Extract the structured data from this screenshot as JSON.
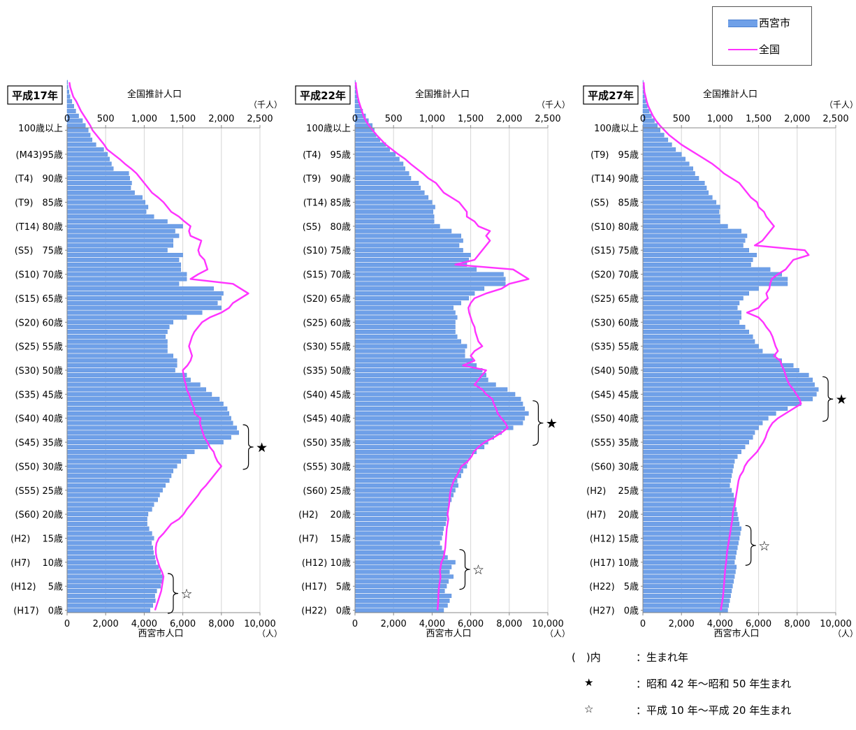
{
  "legend": {
    "items": [
      {
        "label": "西宮市",
        "color": "#6fa0e8",
        "kind": "bar"
      },
      {
        "label": "全国",
        "color": "#ff33ff",
        "kind": "line"
      }
    ]
  },
  "notes": [
    {
      "symbol": "(　)内",
      "text": "：生まれ年"
    },
    {
      "symbol": "★",
      "text": "：昭和 42 年～昭和 50 年生まれ"
    },
    {
      "symbol": "☆",
      "text": "：平成 10 年～平成 20 年生まれ"
    }
  ],
  "chart_data": [
    {
      "type": "bar",
      "title": "平成17年",
      "top_axis_label": "全国推計人口",
      "top_axis_unit": "（千人）",
      "xlabel": "西宮市人口",
      "x_unit": "（人）",
      "xlim": [
        0,
        10000
      ],
      "x_ticks": [
        "0",
        "2,000",
        "4,000",
        "6,000",
        "8,000",
        "10,000"
      ],
      "top_lim": [
        0,
        2500
      ],
      "top_ticks": [
        "0",
        "500",
        "1,000",
        "1,500",
        "2,000",
        "2,500"
      ],
      "age_labels": [
        "100歳以上",
        "(M43)95歳",
        "(T4)　90歳",
        "(T9)　85歳",
        "(T14) 80歳",
        "(S5)　75歳",
        "(S10)  70歳",
        "(S15)  65歳",
        "(S20)  60歳",
        "(S25)  55歳",
        "(S30)  50歳",
        "(S35)  45歳",
        "(S40)  40歳",
        "(S45)  35歳",
        "(S50)  30歳",
        "(S55)  25歳",
        "(S60)  20歳",
        "(H2)　 15歳",
        "(H7)　 10歳",
        "(H12)　 5歳",
        "(H17)　0歳"
      ],
      "star_range": [
        30,
        38
      ],
      "wstar_range": [
        0,
        7
      ],
      "series": [
        {
          "name": "西宮市",
          "values": [
            4300,
            4450,
            4580,
            4550,
            4650,
            4850,
            4950,
            5000,
            4850,
            4750,
            4600,
            4550,
            4480,
            4450,
            4380,
            4500,
            4400,
            4250,
            4150,
            4150,
            4200,
            4400,
            4500,
            4700,
            4800,
            4950,
            5100,
            5300,
            5400,
            5500,
            5700,
            5900,
            6200,
            6600,
            7300,
            8100,
            8500,
            8900,
            8800,
            8600,
            8500,
            8400,
            8300,
            8100,
            7900,
            7500,
            7200,
            6900,
            6400,
            6200,
            5600,
            5700,
            5700,
            5500,
            5200,
            5200,
            5200,
            5100,
            5200,
            5300,
            5500,
            6200,
            7000,
            8000,
            7800,
            8000,
            8100,
            7600,
            5800,
            6200,
            6200,
            5900,
            5900,
            5800,
            6000,
            5200,
            5500,
            5500,
            5800,
            5600,
            6000,
            5200,
            4500,
            4100,
            4200,
            4050,
            3900,
            3500,
            3300,
            3350,
            3250,
            3200,
            2400,
            2300,
            2200,
            2100,
            1900,
            1500,
            1300,
            1200,
            1100,
            950,
            800,
            600,
            450,
            350,
            250,
            150,
            100,
            50,
            30
          ]
        },
        {
          "name": "全国",
          "values": [
            1140,
            1160,
            1180,
            1200,
            1220,
            1230,
            1240,
            1250,
            1230,
            1200,
            1180,
            1160,
            1150,
            1150,
            1160,
            1190,
            1250,
            1300,
            1350,
            1450,
            1510,
            1550,
            1600,
            1650,
            1700,
            1740,
            1800,
            1850,
            1900,
            1950,
            2000,
            1950,
            1920,
            1900,
            1850,
            1820,
            1780,
            1760,
            1740,
            1720,
            1730,
            1650,
            1650,
            1620,
            1600,
            1580,
            1550,
            1540,
            1520,
            1510,
            1500,
            1560,
            1600,
            1620,
            1600,
            1580,
            1600,
            1620,
            1650,
            1700,
            1750,
            1850,
            2000,
            2100,
            2150,
            2250,
            2350,
            2250,
            2150,
            1600,
            1700,
            1820,
            1800,
            1780,
            1720,
            1700,
            1720,
            1740,
            1600,
            1580,
            1600,
            1520,
            1450,
            1350,
            1300,
            1250,
            1180,
            1100,
            1050,
            1000,
            950,
            900,
            830,
            750,
            680,
            600,
            520,
            480,
            430,
            380,
            330,
            300,
            260,
            220,
            180,
            150,
            120,
            80,
            60,
            40,
            30
          ]
        }
      ]
    },
    {
      "type": "bar",
      "title": "平成22年",
      "top_axis_label": "全国推計人口",
      "top_axis_unit": "（千人）",
      "xlabel": "西宮市人口",
      "x_unit": "（人）",
      "xlim": [
        0,
        10000
      ],
      "x_ticks": [
        "0",
        "2,000",
        "4,000",
        "6,000",
        "8,000",
        "10,000"
      ],
      "top_lim": [
        0,
        2500
      ],
      "top_ticks": [
        "0",
        "500",
        "1,000",
        "1,500",
        "2,000",
        "2,500"
      ],
      "age_labels": [
        "100歳以上",
        "(T4)　95歳",
        "(T9)　90歳",
        "(T14) 85歳",
        "(S5)　80歳",
        "(S10)  75歳",
        "(S15)  70歳",
        "(S20)  65歳",
        "(S25)  60歳",
        "(S30)  55歳",
        "(S35)  50歳",
        "(S40)  45歳",
        "(S45)  40歳",
        "(S50)  35歳",
        "(S55)  30歳",
        "(S60)  25歳",
        "(H2)　 20歳",
        "(H7)　 15歳",
        "(H12)  10歳",
        "(H17)　5歳",
        "(H22)　0歳"
      ],
      "star_range": [
        35,
        43
      ],
      "wstar_range": [
        5,
        12
      ],
      "series": [
        {
          "name": "西宮市",
          "values": [
            4600,
            4800,
            4900,
            5000,
            4650,
            4750,
            4850,
            5100,
            4900,
            5000,
            5200,
            4800,
            4600,
            4500,
            4400,
            4500,
            4550,
            4600,
            4700,
            4750,
            4800,
            4850,
            4900,
            5000,
            5100,
            5200,
            5350,
            5300,
            5500,
            5600,
            5800,
            5850,
            6000,
            6300,
            6700,
            6900,
            7200,
            7600,
            8200,
            8700,
            8800,
            9000,
            8800,
            8700,
            8600,
            8300,
            7900,
            7300,
            6900,
            6800,
            6600,
            6300,
            6100,
            5700,
            5700,
            5800,
            5500,
            5300,
            5200,
            5200,
            5200,
            5300,
            5200,
            5100,
            5500,
            5900,
            6200,
            6700,
            7800,
            7800,
            7700,
            6300,
            5800,
            5900,
            6000,
            5600,
            5400,
            5600,
            5500,
            5000,
            4400,
            4100,
            4100,
            4050,
            4150,
            4000,
            3800,
            3600,
            3400,
            3300,
            2900,
            2800,
            2600,
            2500,
            2300,
            2100,
            1800,
            1600,
            1300,
            1100,
            1000,
            900,
            700,
            550,
            400,
            280,
            180,
            100,
            60,
            30,
            20
          ]
        },
        {
          "name": "全国",
          "values": [
            1070,
            1075,
            1080,
            1080,
            1085,
            1090,
            1100,
            1110,
            1100,
            1110,
            1120,
            1150,
            1160,
            1170,
            1175,
            1180,
            1185,
            1190,
            1200,
            1210,
            1200,
            1210,
            1220,
            1225,
            1230,
            1240,
            1260,
            1280,
            1320,
            1350,
            1380,
            1460,
            1510,
            1540,
            1600,
            1680,
            1800,
            1900,
            1980,
            1950,
            1900,
            1850,
            1830,
            1800,
            1780,
            1700,
            1650,
            1550,
            1600,
            1650,
            1700,
            1400,
            1550,
            1500,
            1550,
            1650,
            1600,
            1580,
            1560,
            1550,
            1520,
            1500,
            1480,
            1470,
            1500,
            1550,
            1700,
            1900,
            2000,
            2250,
            2150,
            2050,
            1300,
            1550,
            1600,
            1650,
            1700,
            1750,
            1700,
            1750,
            1600,
            1550,
            1450,
            1450,
            1400,
            1350,
            1250,
            1150,
            1100,
            1050,
            950,
            880,
            800,
            720,
            650,
            560,
            480,
            400,
            340,
            280,
            230,
            180,
            140,
            110,
            90,
            70,
            50,
            35,
            25,
            15,
            10
          ]
        }
      ]
    },
    {
      "type": "bar",
      "title": "平成27年",
      "top_axis_label": "全国推計人口",
      "top_axis_unit": "（千人）",
      "xlabel": "西宮市人口",
      "x_unit": "（人）",
      "xlim": [
        0,
        10000
      ],
      "x_ticks": [
        "0",
        "2,000",
        "4,000",
        "6,000",
        "8,000",
        "10,000"
      ],
      "top_lim": [
        0,
        2500
      ],
      "top_ticks": [
        "0",
        "500",
        "1,000",
        "1,500",
        "2,000",
        "2,500"
      ],
      "age_labels": [
        "100歳以上",
        "(T9)　95歳",
        "(T14) 90歳",
        "(S5)　85歳",
        "(S10)  80歳",
        "(S15)  75歳",
        "(S20)  70歳",
        "(S25)  65歳",
        "(S30)  60歳",
        "(S35)  55歳",
        "(S40)  50歳",
        "(S45)  45歳",
        "(S50)  40歳",
        "(S55)  35歳",
        "(S60)  30歳",
        "(H2)　 25歳",
        "(H7)　 20歳",
        "(H12)  15歳",
        "(H17)  10歳",
        "(H22)　5歳",
        "(H27)　0歳"
      ],
      "star_range": [
        40,
        48
      ],
      "wstar_range": [
        10,
        17
      ],
      "series": [
        {
          "name": "西宮市",
          "values": [
            4400,
            4450,
            4500,
            4550,
            4600,
            4650,
            4700,
            4750,
            4800,
            4850,
            4750,
            4800,
            4850,
            4900,
            4950,
            5000,
            5050,
            5100,
            5000,
            4950,
            4900,
            4850,
            4800,
            4750,
            4700,
            4600,
            4500,
            4550,
            4600,
            4650,
            4700,
            4750,
            4900,
            5100,
            5300,
            5500,
            5700,
            5800,
            6000,
            6200,
            6500,
            6900,
            7500,
            8200,
            8800,
            9000,
            9100,
            8900,
            8800,
            8600,
            8100,
            7800,
            7200,
            6900,
            6200,
            6000,
            5800,
            5700,
            5500,
            5300,
            5000,
            5100,
            5100,
            4900,
            5000,
            5200,
            5500,
            6000,
            7500,
            7500,
            7200,
            6600,
            5600,
            5700,
            5900,
            5500,
            5200,
            5300,
            5400,
            5100,
            4400,
            4000,
            4000,
            3950,
            4000,
            3800,
            3600,
            3400,
            3300,
            3200,
            2900,
            2700,
            2600,
            2400,
            2200,
            2000,
            1700,
            1500,
            1300,
            1100,
            900,
            750,
            600,
            450,
            330,
            230,
            150,
            90,
            50,
            30,
            20
          ]
        },
        {
          "name": "全国",
          "values": [
            1010,
            1020,
            1030,
            1040,
            1045,
            1050,
            1055,
            1060,
            1065,
            1070,
            1080,
            1085,
            1090,
            1100,
            1110,
            1120,
            1130,
            1140,
            1150,
            1160,
            1165,
            1175,
            1190,
            1200,
            1210,
            1220,
            1230,
            1240,
            1260,
            1300,
            1320,
            1360,
            1420,
            1480,
            1520,
            1560,
            1590,
            1610,
            1640,
            1680,
            1750,
            1850,
            1950,
            2050,
            2030,
            1990,
            1950,
            1900,
            1870,
            1850,
            1830,
            1800,
            1780,
            1700,
            1750,
            1720,
            1700,
            1680,
            1650,
            1600,
            1560,
            1500,
            1350,
            1500,
            1550,
            1620,
            1600,
            1640,
            1650,
            1670,
            1750,
            1850,
            1900,
            1950,
            2150,
            2100,
            1450,
            1550,
            1600,
            1650,
            1700,
            1650,
            1600,
            1570,
            1500,
            1480,
            1400,
            1350,
            1300,
            1250,
            1150,
            1050,
            980,
            900,
            800,
            700,
            600,
            500,
            420,
            340,
            280,
            220,
            170,
            130,
            100,
            70,
            50,
            35,
            20,
            15,
            10
          ]
        }
      ]
    }
  ]
}
